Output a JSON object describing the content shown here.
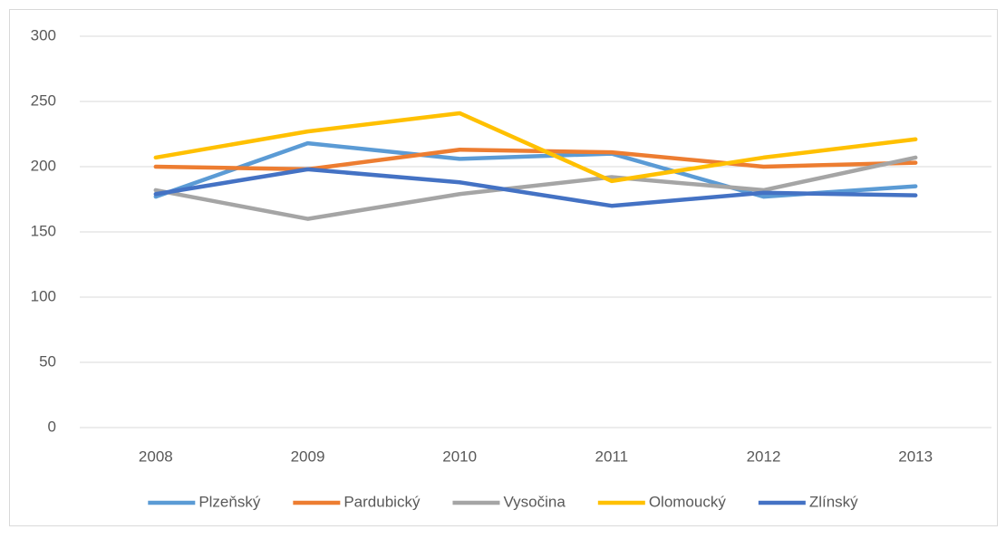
{
  "chart_data": {
    "type": "line",
    "categories": [
      "2008",
      "2009",
      "2010",
      "2011",
      "2012",
      "2013"
    ],
    "series": [
      {
        "name": "Plzeňský",
        "color": "#5b9bd5",
        "values": [
          177,
          218,
          206,
          210,
          177,
          185
        ]
      },
      {
        "name": "Pardubický",
        "color": "#ed7d31",
        "values": [
          200,
          198,
          213,
          211,
          200,
          203
        ]
      },
      {
        "name": "Vysočina",
        "color": "#a5a5a5",
        "values": [
          182,
          160,
          179,
          192,
          182,
          207
        ]
      },
      {
        "name": "Olomoucký",
        "color": "#ffc000",
        "values": [
          207,
          227,
          241,
          189,
          207,
          221
        ]
      },
      {
        "name": "Zlínský",
        "color": "#4472c4",
        "values": [
          179,
          198,
          188,
          170,
          180,
          178
        ]
      }
    ],
    "ylim": [
      0,
      300
    ],
    "yticks": [
      0,
      50,
      100,
      150,
      200,
      250,
      300
    ],
    "grid": true,
    "legend": "bottom"
  }
}
